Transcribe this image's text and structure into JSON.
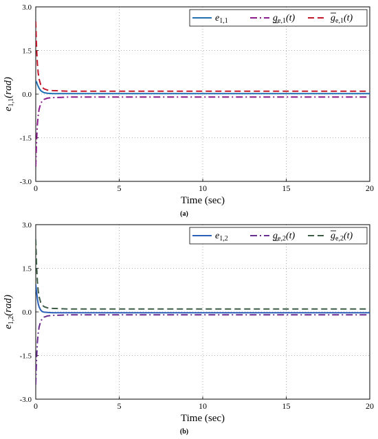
{
  "chart_data": [
    {
      "type": "line",
      "panel_label": "(a)",
      "xlabel": "Time (sec)",
      "ylabel": {
        "base": "e",
        "sub": "1,1",
        "rest": "(rad)"
      },
      "xlim": [
        0,
        20
      ],
      "ylim": [
        -3.0,
        3.0
      ],
      "xticks": [
        0,
        5,
        10,
        15,
        20
      ],
      "yticks": [
        3.0,
        1.5,
        0.0,
        -1.5,
        -3.0
      ],
      "ytick_labels": [
        "3.0",
        "1.5",
        "0.0",
        "-1.5",
        "-3.0"
      ],
      "grid": true,
      "legend_position": "top-right",
      "series": [
        {
          "name": "e_{1,1}",
          "legend": {
            "base": "e",
            "sub": "1,1",
            "rest": ""
          },
          "color": "#1f6fb5",
          "dash": "solid",
          "x": [
            0,
            0.05,
            0.1,
            0.2,
            0.3,
            0.4,
            0.5,
            0.7,
            1.0,
            2,
            5,
            10,
            15,
            20
          ],
          "y": [
            0.45,
            0.42,
            0.33,
            0.2,
            0.12,
            0.08,
            0.05,
            0.03,
            0.02,
            0.02,
            0.02,
            0.02,
            0.02,
            0.02
          ]
        },
        {
          "name": "g_{e,1}(t) lower",
          "legend": {
            "base": "g",
            "sub": "e,1",
            "rest": "(t)",
            "accent": "under"
          },
          "color": "#8b1a8b",
          "dash": "dashdot",
          "x": [
            0,
            0.05,
            0.1,
            0.15,
            0.2,
            0.3,
            0.4,
            0.5,
            0.7,
            1.0,
            1.5,
            2,
            5,
            10,
            15,
            20
          ],
          "y": [
            -2.5,
            -1.6,
            -1.05,
            -0.72,
            -0.52,
            -0.32,
            -0.23,
            -0.18,
            -0.14,
            -0.12,
            -0.11,
            -0.1,
            -0.1,
            -0.1,
            -0.1,
            -0.1
          ]
        },
        {
          "name": "g_{e,1}(t) upper",
          "legend": {
            "base": "g",
            "sub": "e,1",
            "rest": "(t)",
            "accent": "over"
          },
          "color": "#c0182b",
          "dash": "dash",
          "x": [
            0,
            0.05,
            0.1,
            0.15,
            0.2,
            0.3,
            0.4,
            0.5,
            0.7,
            1.0,
            1.5,
            2,
            5,
            10,
            15,
            20
          ],
          "y": [
            2.5,
            1.6,
            1.05,
            0.72,
            0.52,
            0.32,
            0.23,
            0.18,
            0.14,
            0.12,
            0.11,
            0.1,
            0.1,
            0.1,
            0.1,
            0.1
          ]
        }
      ]
    },
    {
      "type": "line",
      "panel_label": "(b)",
      "xlabel": "Time (sec)",
      "ylabel": {
        "base": "e",
        "sub": "1,2",
        "rest": "(rad)"
      },
      "xlim": [
        0,
        20
      ],
      "ylim": [
        -3.0,
        3.0
      ],
      "xticks": [
        0,
        5,
        10,
        15,
        20
      ],
      "yticks": [
        3.0,
        1.5,
        0.0,
        -1.5,
        -3.0
      ],
      "ytick_labels": [
        "3.0",
        "1.5",
        "0.0",
        "-1.5",
        "-3.0"
      ],
      "grid": true,
      "legend_position": "top-right",
      "series": [
        {
          "name": "e_{1,2}",
          "legend": {
            "base": "e",
            "sub": "1,2",
            "rest": ""
          },
          "color": "#2a5fb8",
          "dash": "solid",
          "x": [
            0,
            0.05,
            0.1,
            0.15,
            0.2,
            0.3,
            0.4,
            0.5,
            0.7,
            1.0,
            2,
            5,
            10,
            15,
            20
          ],
          "y": [
            0.95,
            0.7,
            0.45,
            0.28,
            0.17,
            0.06,
            0.01,
            -0.01,
            -0.02,
            -0.03,
            -0.03,
            -0.03,
            -0.03,
            -0.03,
            -0.03
          ]
        },
        {
          "name": "g_{e,2}(t) lower",
          "legend": {
            "base": "g",
            "sub": "e,2",
            "rest": "(t)",
            "accent": "under"
          },
          "color": "#6a2c8e",
          "dash": "dashdot",
          "x": [
            0,
            0.05,
            0.1,
            0.15,
            0.2,
            0.3,
            0.4,
            0.5,
            0.7,
            1.0,
            1.5,
            2,
            5,
            10,
            15,
            20
          ],
          "y": [
            -2.5,
            -1.6,
            -1.05,
            -0.72,
            -0.52,
            -0.32,
            -0.23,
            -0.18,
            -0.14,
            -0.12,
            -0.11,
            -0.1,
            -0.1,
            -0.1,
            -0.1,
            -0.1
          ]
        },
        {
          "name": "g_{e,2}(t) upper",
          "legend": {
            "base": "g",
            "sub": "e,2",
            "rest": "(t)",
            "accent": "over"
          },
          "color": "#3b5b44",
          "dash": "dash",
          "x": [
            0,
            0.05,
            0.1,
            0.15,
            0.2,
            0.3,
            0.4,
            0.5,
            0.7,
            1.0,
            1.5,
            2,
            5,
            10,
            15,
            20
          ],
          "y": [
            2.5,
            1.6,
            1.05,
            0.72,
            0.52,
            0.32,
            0.23,
            0.18,
            0.14,
            0.12,
            0.11,
            0.1,
            0.1,
            0.1,
            0.1,
            0.1
          ]
        }
      ]
    }
  ]
}
